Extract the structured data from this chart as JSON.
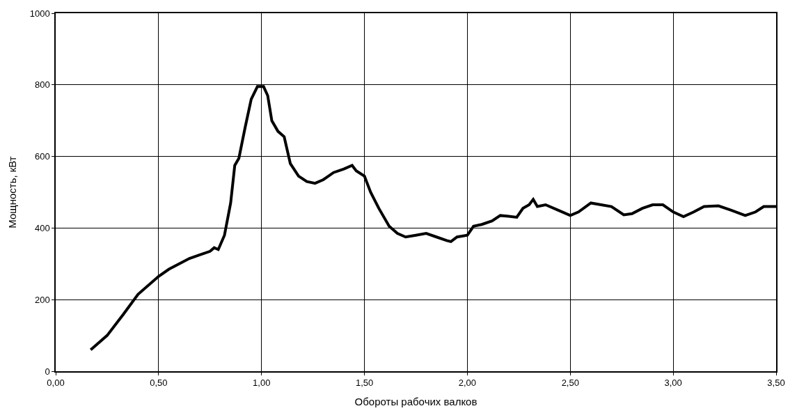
{
  "chart_data": {
    "type": "line",
    "xlabel": "Обороты рабочих валков",
    "ylabel": "Мощность, кВт",
    "x": [
      0.17,
      0.25,
      0.33,
      0.4,
      0.5,
      0.55,
      0.6,
      0.65,
      0.7,
      0.75,
      0.77,
      0.79,
      0.82,
      0.85,
      0.87,
      0.89,
      0.92,
      0.95,
      0.98,
      1.01,
      1.03,
      1.05,
      1.08,
      1.11,
      1.14,
      1.18,
      1.22,
      1.26,
      1.3,
      1.35,
      1.4,
      1.44,
      1.46,
      1.5,
      1.53,
      1.57,
      1.62,
      1.66,
      1.7,
      1.75,
      1.8,
      1.85,
      1.9,
      1.92,
      1.95,
      2.0,
      2.03,
      2.07,
      2.12,
      2.16,
      2.2,
      2.24,
      2.27,
      2.3,
      2.32,
      2.34,
      2.38,
      2.44,
      2.5,
      2.54,
      2.6,
      2.65,
      2.7,
      2.76,
      2.8,
      2.85,
      2.9,
      2.95,
      3.0,
      3.05,
      3.1,
      3.15,
      3.22,
      3.28,
      3.35,
      3.4,
      3.44,
      3.5
    ],
    "series": [
      {
        "color": "#000000",
        "values": [
          60,
          100,
          160,
          215,
          265,
          285,
          300,
          315,
          325,
          335,
          345,
          340,
          380,
          470,
          575,
          595,
          680,
          760,
          795,
          795,
          770,
          700,
          670,
          655,
          580,
          545,
          530,
          525,
          535,
          555,
          565,
          575,
          560,
          545,
          500,
          455,
          405,
          385,
          375,
          380,
          385,
          375,
          365,
          362,
          375,
          380,
          405,
          410,
          420,
          435,
          433,
          430,
          455,
          465,
          480,
          460,
          465,
          450,
          435,
          445,
          470,
          465,
          460,
          437,
          440,
          455,
          465,
          465,
          445,
          432,
          445,
          460,
          462,
          450,
          435,
          445,
          460,
          460
        ]
      }
    ],
    "xlim": [
      0,
      3.5
    ],
    "xticks": [
      {
        "value": 0,
        "label": "0,00"
      },
      {
        "value": 0.5,
        "label": "0,50"
      },
      {
        "value": 1,
        "label": "1,00"
      },
      {
        "value": 1.5,
        "label": "1,50"
      },
      {
        "value": 2,
        "label": "2,00"
      },
      {
        "value": 2.5,
        "label": "2,50"
      },
      {
        "value": 3,
        "label": "3,00"
      },
      {
        "value": 3.5,
        "label": "3,50"
      }
    ],
    "ylim": [
      0,
      1000
    ],
    "yticks": [
      0,
      200,
      400,
      600,
      800,
      1000
    ],
    "grid": true,
    "marker": "none",
    "line_style": "solid"
  }
}
